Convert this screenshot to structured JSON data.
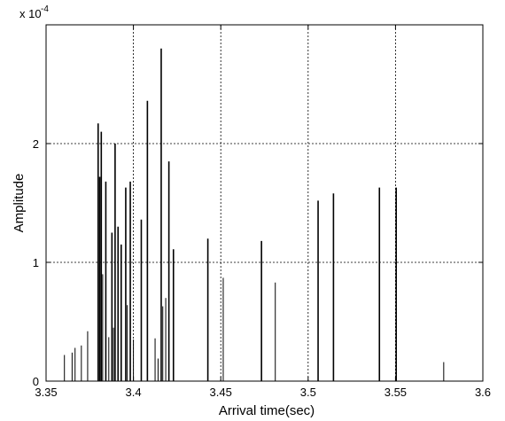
{
  "chart_data": {
    "type": "bar",
    "title": "",
    "xlabel": "Arrival time(sec)",
    "ylabel": "Amplitude",
    "y_exponent_label": "x 10",
    "y_exponent_power": "-4",
    "xlim": [
      3.35,
      3.6
    ],
    "ylim": [
      0,
      3
    ],
    "grid": true,
    "x_ticks": [
      3.35,
      3.4,
      3.45,
      3.5,
      3.55,
      3.6
    ],
    "x_tick_labels": [
      "3.35",
      "3.4",
      "3.45",
      "3.5",
      "3.55",
      "3.6"
    ],
    "y_ticks": [
      0,
      1,
      2
    ],
    "y_tick_labels": [
      "0",
      "1",
      "2"
    ],
    "series": [
      {
        "x": [
          3.3605,
          3.3649,
          3.3666,
          3.3702,
          3.3738,
          3.3798,
          3.3807,
          3.3816,
          3.3824,
          3.3842,
          3.3859,
          3.3877,
          3.3886,
          3.3895,
          3.3912,
          3.393,
          3.3956,
          3.3965,
          3.3982,
          3.4,
          3.4045,
          3.408,
          3.4124,
          3.4141,
          3.4159,
          3.4168,
          3.4185,
          3.4203,
          3.4229,
          3.4426,
          3.4514,
          3.4733,
          3.4812,
          3.5057,
          3.5145,
          3.5408,
          3.5504,
          3.5776
        ],
        "values": [
          0.22,
          0.24,
          0.28,
          0.3,
          0.42,
          2.17,
          1.72,
          2.1,
          0.9,
          1.68,
          0.37,
          1.25,
          0.45,
          2.0,
          1.3,
          1.15,
          1.63,
          0.64,
          1.68,
          0.35,
          1.36,
          2.36,
          0.36,
          0.19,
          2.8,
          0.63,
          0.7,
          1.85,
          1.11,
          1.2,
          0.87,
          1.18,
          0.83,
          1.52,
          1.58,
          1.63,
          1.63,
          0.16
        ]
      }
    ]
  }
}
